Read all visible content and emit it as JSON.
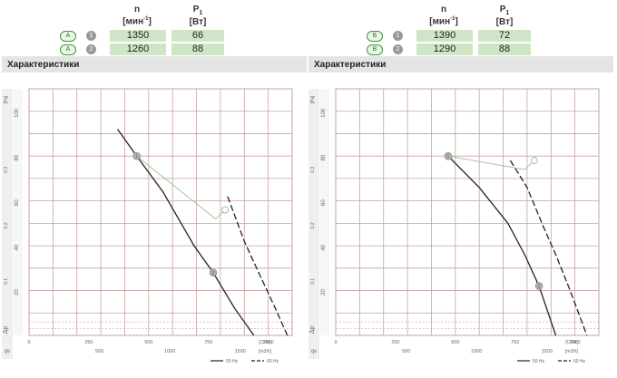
{
  "header": {
    "n_label": "n",
    "n_unit_pre": "[мин",
    "n_unit_sup": "-1",
    "n_unit_post": "]",
    "p_label": "P",
    "p_sub": "1",
    "p_unit": "[Вт]"
  },
  "panels": [
    {
      "rows": [
        {
          "letter": "A",
          "num": "1",
          "n": "1350",
          "p": "66"
        },
        {
          "letter": "A",
          "num": "2",
          "n": "1260",
          "p": "88"
        }
      ],
      "section_title": "Характеристики"
    },
    {
      "rows": [
        {
          "letter": "B",
          "num": "1",
          "n": "1390",
          "p": "72"
        },
        {
          "letter": "B",
          "num": "2",
          "n": "1290",
          "p": "88"
        }
      ],
      "section_title": "Характеристики"
    }
  ],
  "chart_data": [
    {
      "type": "line",
      "xlim": [
        0,
        1100
      ],
      "ylim": [
        0,
        110
      ],
      "x_ticks": [
        "0",
        "250",
        "500",
        "750",
        "1000"
      ],
      "x_unit": "[CFM]",
      "x2_ticks": [
        "500",
        "1000",
        "1500"
      ],
      "x2_unit": "[m3/h]",
      "y_ticks": [
        "20",
        "40",
        "60",
        "80",
        "100"
      ],
      "y_unit": "[Pa]",
      "y2_ticks": [
        "0.1",
        "0.2",
        "0.3"
      ],
      "y2_unit": "[in H2O]",
      "legend": [
        "50 Hz",
        "60 Hz"
      ],
      "markers": [
        "1",
        "2"
      ],
      "series": [
        {
          "name": "50 Hz",
          "style": "solid",
          "x": [
            370,
            450,
            560,
            690,
            770,
            860,
            940
          ],
          "y": [
            92,
            80,
            64,
            40,
            28,
            12,
            0
          ]
        },
        {
          "name": "60 Hz",
          "style": "dashed",
          "x": [
            830,
            900,
            960,
            1030,
            1080
          ],
          "y": [
            62,
            42,
            28,
            12,
            0
          ]
        }
      ]
    },
    {
      "type": "line",
      "xlim": [
        0,
        1100
      ],
      "ylim": [
        0,
        110
      ],
      "x_ticks": [
        "0",
        "250",
        "500",
        "750",
        "1000"
      ],
      "x_unit": "[CFM]",
      "x2_ticks": [
        "500",
        "1000",
        "1500"
      ],
      "x2_unit": "[m3/h]",
      "y_ticks": [
        "20",
        "40",
        "60",
        "80",
        "100"
      ],
      "y_unit": "[Pa]",
      "y2_ticks": [
        "0.1",
        "0.2",
        "0.3"
      ],
      "y2_unit": "[in H2O]",
      "legend": [
        "50 Hz",
        "60 Hz"
      ],
      "markers": [
        "1",
        "2"
      ],
      "series": [
        {
          "name": "50 Hz",
          "style": "solid",
          "x": [
            470,
            600,
            720,
            790,
            850,
            920
          ],
          "y": [
            80,
            66,
            50,
            36,
            22,
            0
          ]
        },
        {
          "name": "60 Hz",
          "style": "dashed",
          "x": [
            730,
            800,
            870,
            920,
            980,
            1050
          ],
          "y": [
            78,
            66,
            48,
            36,
            20,
            0
          ]
        }
      ]
    }
  ],
  "colors": {
    "grid": "#c9a0a0",
    "curve": "#222222",
    "marker": "#b0b0b0",
    "leader": "#8fbf8f",
    "section_bg": "#e4e4e4",
    "value_cell": "#cfe6c6"
  }
}
